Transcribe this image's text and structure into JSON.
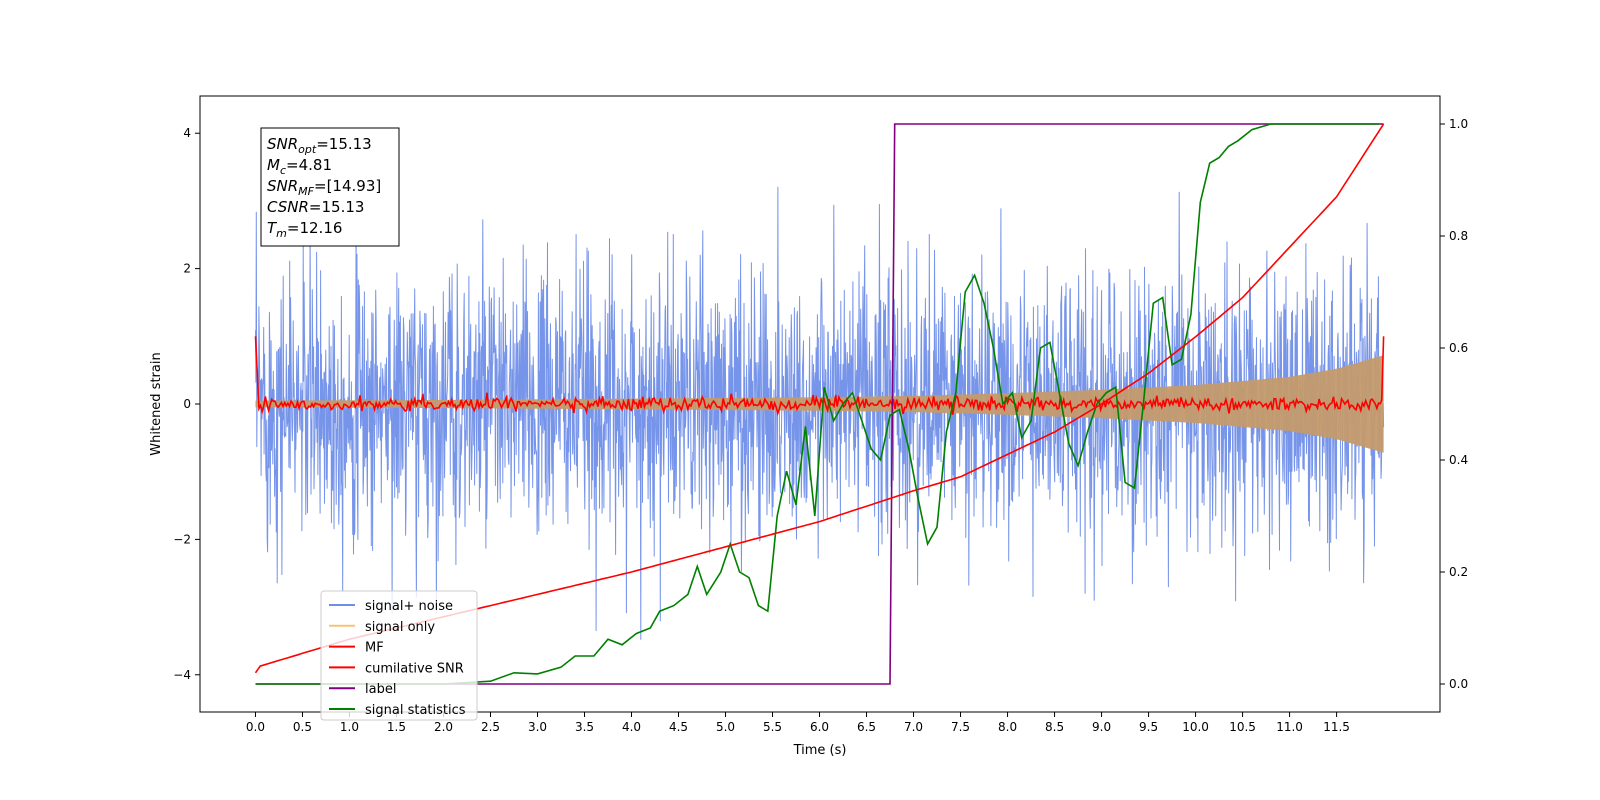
{
  "chart_data": {
    "type": "line",
    "xlabel": "Time (s)",
    "ylabel": "Whitened strain",
    "title": "",
    "xlim": [
      -0.59,
      12.6
    ],
    "ylim": [
      -4.55,
      4.55
    ],
    "y2lim": [
      -0.05,
      1.05
    ],
    "xticks": [
      "0.0",
      "0.5",
      "1.0",
      "1.5",
      "2.0",
      "2.5",
      "3.0",
      "3.5",
      "4.0",
      "4.5",
      "5.0",
      "5.5",
      "6.0",
      "6.5",
      "7.0",
      "7.5",
      "8.0",
      "8.5",
      "9.0",
      "9.5",
      "10.0",
      "10.5",
      "11.0",
      "11.5"
    ],
    "yticks": [
      "4",
      "2",
      "0",
      "−2",
      "−4"
    ],
    "y2ticks": [
      "1.0",
      "0.8",
      "0.6",
      "0.4",
      "0.2",
      "0.0"
    ],
    "grid": false,
    "legend_position": "lower-left",
    "annotation": {
      "lines": [
        {
          "var": "SNR",
          "sub": "opt",
          "value": "=15.13"
        },
        {
          "var": "M",
          "sub": "c",
          "value": "=4.81"
        },
        {
          "var": "SNR",
          "sub": "MF",
          "value": "=[14.93]"
        },
        {
          "var": "CSNR",
          "sub": "",
          "value": "=15.13"
        },
        {
          "var": "T",
          "sub": "m",
          "value": "=12.16"
        }
      ]
    },
    "series": [
      {
        "name": "signal+ noise",
        "color": "#6f8ee8",
        "axis": "left",
        "description_values": {
          "x_range": [
            0.0,
            12.0
          ],
          "std": 1.0,
          "min": -4.05,
          "max": 4.17
        }
      },
      {
        "name": "signal only",
        "color": "#f5c27a",
        "axis": "left",
        "envelope": {
          "x": [
            0.0,
            2.0,
            4.0,
            6.0,
            7.0,
            8.0,
            9.0,
            10.0,
            11.0,
            11.5,
            12.0
          ],
          "amplitude": [
            0.05,
            0.06,
            0.08,
            0.1,
            0.12,
            0.16,
            0.21,
            0.28,
            0.4,
            0.52,
            0.72
          ]
        }
      },
      {
        "name": "MF",
        "color": "#ff0000",
        "axis": "left",
        "x": [
          0.0,
          0.02,
          12.0
        ],
        "values": [
          1.0,
          0.0,
          0.0
        ],
        "end_value": 1.0,
        "noise_std": 0.05
      },
      {
        "name": "cumilative SNR",
        "color": "#ff0000",
        "axis": "right",
        "x": [
          0.0,
          0.01,
          1.0,
          2.0,
          3.0,
          4.0,
          5.0,
          6.0,
          7.0,
          7.5,
          8.0,
          8.5,
          9.0,
          9.5,
          10.0,
          10.5,
          11.0,
          11.5,
          12.0
        ],
        "values": [
          0.02,
          0.03,
          0.08,
          0.12,
          0.16,
          0.2,
          0.245,
          0.29,
          0.345,
          0.37,
          0.41,
          0.45,
          0.5,
          0.555,
          0.62,
          0.69,
          0.78,
          0.87,
          1.0
        ]
      },
      {
        "name": "label",
        "color": "#800080",
        "axis": "right",
        "x": [
          0.0,
          6.75,
          6.8,
          12.0
        ],
        "values": [
          0.0,
          0.0,
          1.0,
          1.0
        ]
      },
      {
        "name": "signal statistics",
        "color": "#008000",
        "axis": "right",
        "x": [
          0.0,
          2.0,
          2.5,
          2.75,
          3.0,
          3.25,
          3.4,
          3.6,
          3.75,
          3.9,
          4.05,
          4.2,
          4.3,
          4.45,
          4.6,
          4.7,
          4.8,
          4.95,
          5.05,
          5.15,
          5.25,
          5.35,
          5.45,
          5.55,
          5.65,
          5.75,
          5.85,
          5.95,
          6.05,
          6.15,
          6.25,
          6.35,
          6.45,
          6.55,
          6.65,
          6.75,
          6.85,
          6.95,
          7.05,
          7.15,
          7.25,
          7.35,
          7.45,
          7.55,
          7.65,
          7.75,
          7.85,
          7.95,
          8.05,
          8.15,
          8.25,
          8.35,
          8.45,
          8.55,
          8.65,
          8.75,
          8.85,
          8.95,
          9.05,
          9.15,
          9.25,
          9.35,
          9.45,
          9.55,
          9.65,
          9.75,
          9.85,
          9.95,
          10.05,
          10.15,
          10.25,
          10.35,
          10.45,
          10.6,
          10.8,
          11.0,
          11.5,
          11.95
        ],
        "values": [
          0.0,
          0.0,
          0.005,
          0.02,
          0.018,
          0.03,
          0.05,
          0.05,
          0.08,
          0.07,
          0.09,
          0.1,
          0.13,
          0.14,
          0.16,
          0.21,
          0.16,
          0.2,
          0.25,
          0.2,
          0.19,
          0.14,
          0.13,
          0.3,
          0.38,
          0.32,
          0.46,
          0.3,
          0.53,
          0.47,
          0.5,
          0.52,
          0.47,
          0.42,
          0.4,
          0.48,
          0.49,
          0.42,
          0.33,
          0.25,
          0.28,
          0.45,
          0.52,
          0.7,
          0.73,
          0.68,
          0.6,
          0.5,
          0.52,
          0.44,
          0.47,
          0.6,
          0.61,
          0.52,
          0.43,
          0.39,
          0.45,
          0.5,
          0.52,
          0.53,
          0.36,
          0.35,
          0.51,
          0.68,
          0.69,
          0.57,
          0.58,
          0.66,
          0.86,
          0.93,
          0.94,
          0.96,
          0.97,
          0.99,
          1.0,
          1.0,
          1.0,
          1.0
        ]
      }
    ]
  }
}
